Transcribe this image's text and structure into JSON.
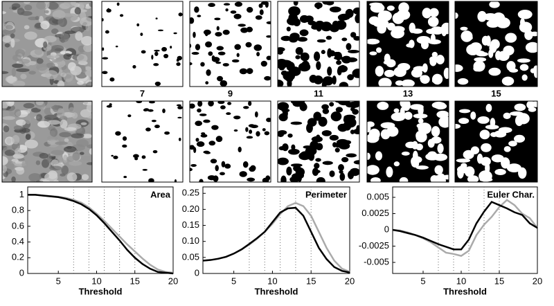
{
  "threshold_labels": [
    "7",
    "9",
    "11",
    "13",
    "15"
  ],
  "chart_data": [
    {
      "type": "line",
      "title": "Area",
      "xlabel": "Threshold",
      "x": [
        1,
        2,
        3,
        4,
        5,
        6,
        7,
        8,
        9,
        10,
        11,
        12,
        13,
        14,
        15,
        16,
        17,
        18,
        19,
        20
      ],
      "xlim": [
        1,
        20
      ],
      "xticks": [
        5,
        10,
        15,
        20
      ],
      "ylim": [
        0,
        1.1
      ],
      "yticks": [
        0,
        0.2,
        0.4,
        0.6,
        0.8,
        1
      ],
      "vlines": [
        7,
        9,
        11,
        13,
        15
      ],
      "series": [
        {
          "color": "#aaaaaa",
          "values": [
            1,
            1,
            0.99,
            0.985,
            0.975,
            0.96,
            0.935,
            0.9,
            0.84,
            0.76,
            0.67,
            0.57,
            0.47,
            0.37,
            0.28,
            0.19,
            0.11,
            0.05,
            0.02,
            0.01
          ]
        },
        {
          "color": "#000000",
          "values": [
            1,
            1,
            0.99,
            0.98,
            0.97,
            0.95,
            0.92,
            0.88,
            0.82,
            0.74,
            0.64,
            0.53,
            0.42,
            0.3,
            0.2,
            0.12,
            0.06,
            0.02,
            0.01,
            0
          ]
        }
      ]
    },
    {
      "type": "line",
      "title": "Perimeter",
      "xlabel": "Threshold",
      "x": [
        1,
        2,
        3,
        4,
        5,
        6,
        7,
        8,
        9,
        10,
        11,
        12,
        13,
        14,
        15,
        16,
        17,
        18,
        19,
        20
      ],
      "xlim": [
        1,
        20
      ],
      "xticks": [
        5,
        10,
        15,
        20
      ],
      "ylim": [
        0,
        0.27
      ],
      "yticks": [
        0,
        0.05,
        {
          "value": 0.1,
          "label": "0.10"
        },
        0.15,
        {
          "value": 0.2,
          "label": "0.20"
        },
        0.25
      ],
      "vlines": [
        7,
        9,
        11,
        13,
        15
      ],
      "series": [
        {
          "color": "#aaaaaa",
          "values": [
            0.04,
            0.042,
            0.046,
            0.052,
            0.062,
            0.075,
            0.09,
            0.108,
            0.13,
            0.155,
            0.185,
            0.21,
            0.22,
            0.21,
            0.18,
            0.13,
            0.08,
            0.04,
            0.015,
            0.005
          ]
        },
        {
          "color": "#000000",
          "values": [
            0.04,
            0.042,
            0.046,
            0.052,
            0.062,
            0.075,
            0.092,
            0.11,
            0.13,
            0.16,
            0.19,
            0.203,
            0.205,
            0.18,
            0.13,
            0.08,
            0.045,
            0.02,
            0.008,
            0.003
          ]
        }
      ]
    },
    {
      "type": "line",
      "title": "Euler Char.",
      "xlabel": "Threshold",
      "x": [
        1,
        2,
        3,
        4,
        5,
        6,
        7,
        8,
        9,
        10,
        11,
        12,
        13,
        14,
        15,
        16,
        17,
        18,
        19,
        20
      ],
      "xlim": [
        1,
        20
      ],
      "xticks": [
        5,
        10,
        15,
        20
      ],
      "ylim": [
        -0.0067,
        0.0066
      ],
      "yticks": [
        -0.005,
        -0.0025,
        0,
        0.0025,
        0.005
      ],
      "vlines": [
        7,
        9,
        11,
        13,
        15
      ],
      "series": [
        {
          "color": "#aaaaaa",
          "values": [
            0,
            -0.0001,
            -0.0004,
            -0.0008,
            -0.0013,
            -0.0019,
            -0.0027,
            -0.0035,
            -0.0037,
            -0.004,
            -0.0032,
            -0.0008,
            0.0008,
            0.002,
            0.0035,
            0.0046,
            0.0038,
            0.0025,
            0.0018,
            0.0003
          ]
        },
        {
          "color": "#000000",
          "values": [
            0,
            -0.0002,
            -0.0005,
            -0.0008,
            -0.0012,
            -0.0017,
            -0.0022,
            -0.0026,
            -0.003,
            -0.003,
            -0.0015,
            0.001,
            0.0028,
            0.0043,
            0.0038,
            0.0033,
            0.0027,
            0.0023,
            0.001,
            0.0003
          ]
        }
      ]
    }
  ]
}
